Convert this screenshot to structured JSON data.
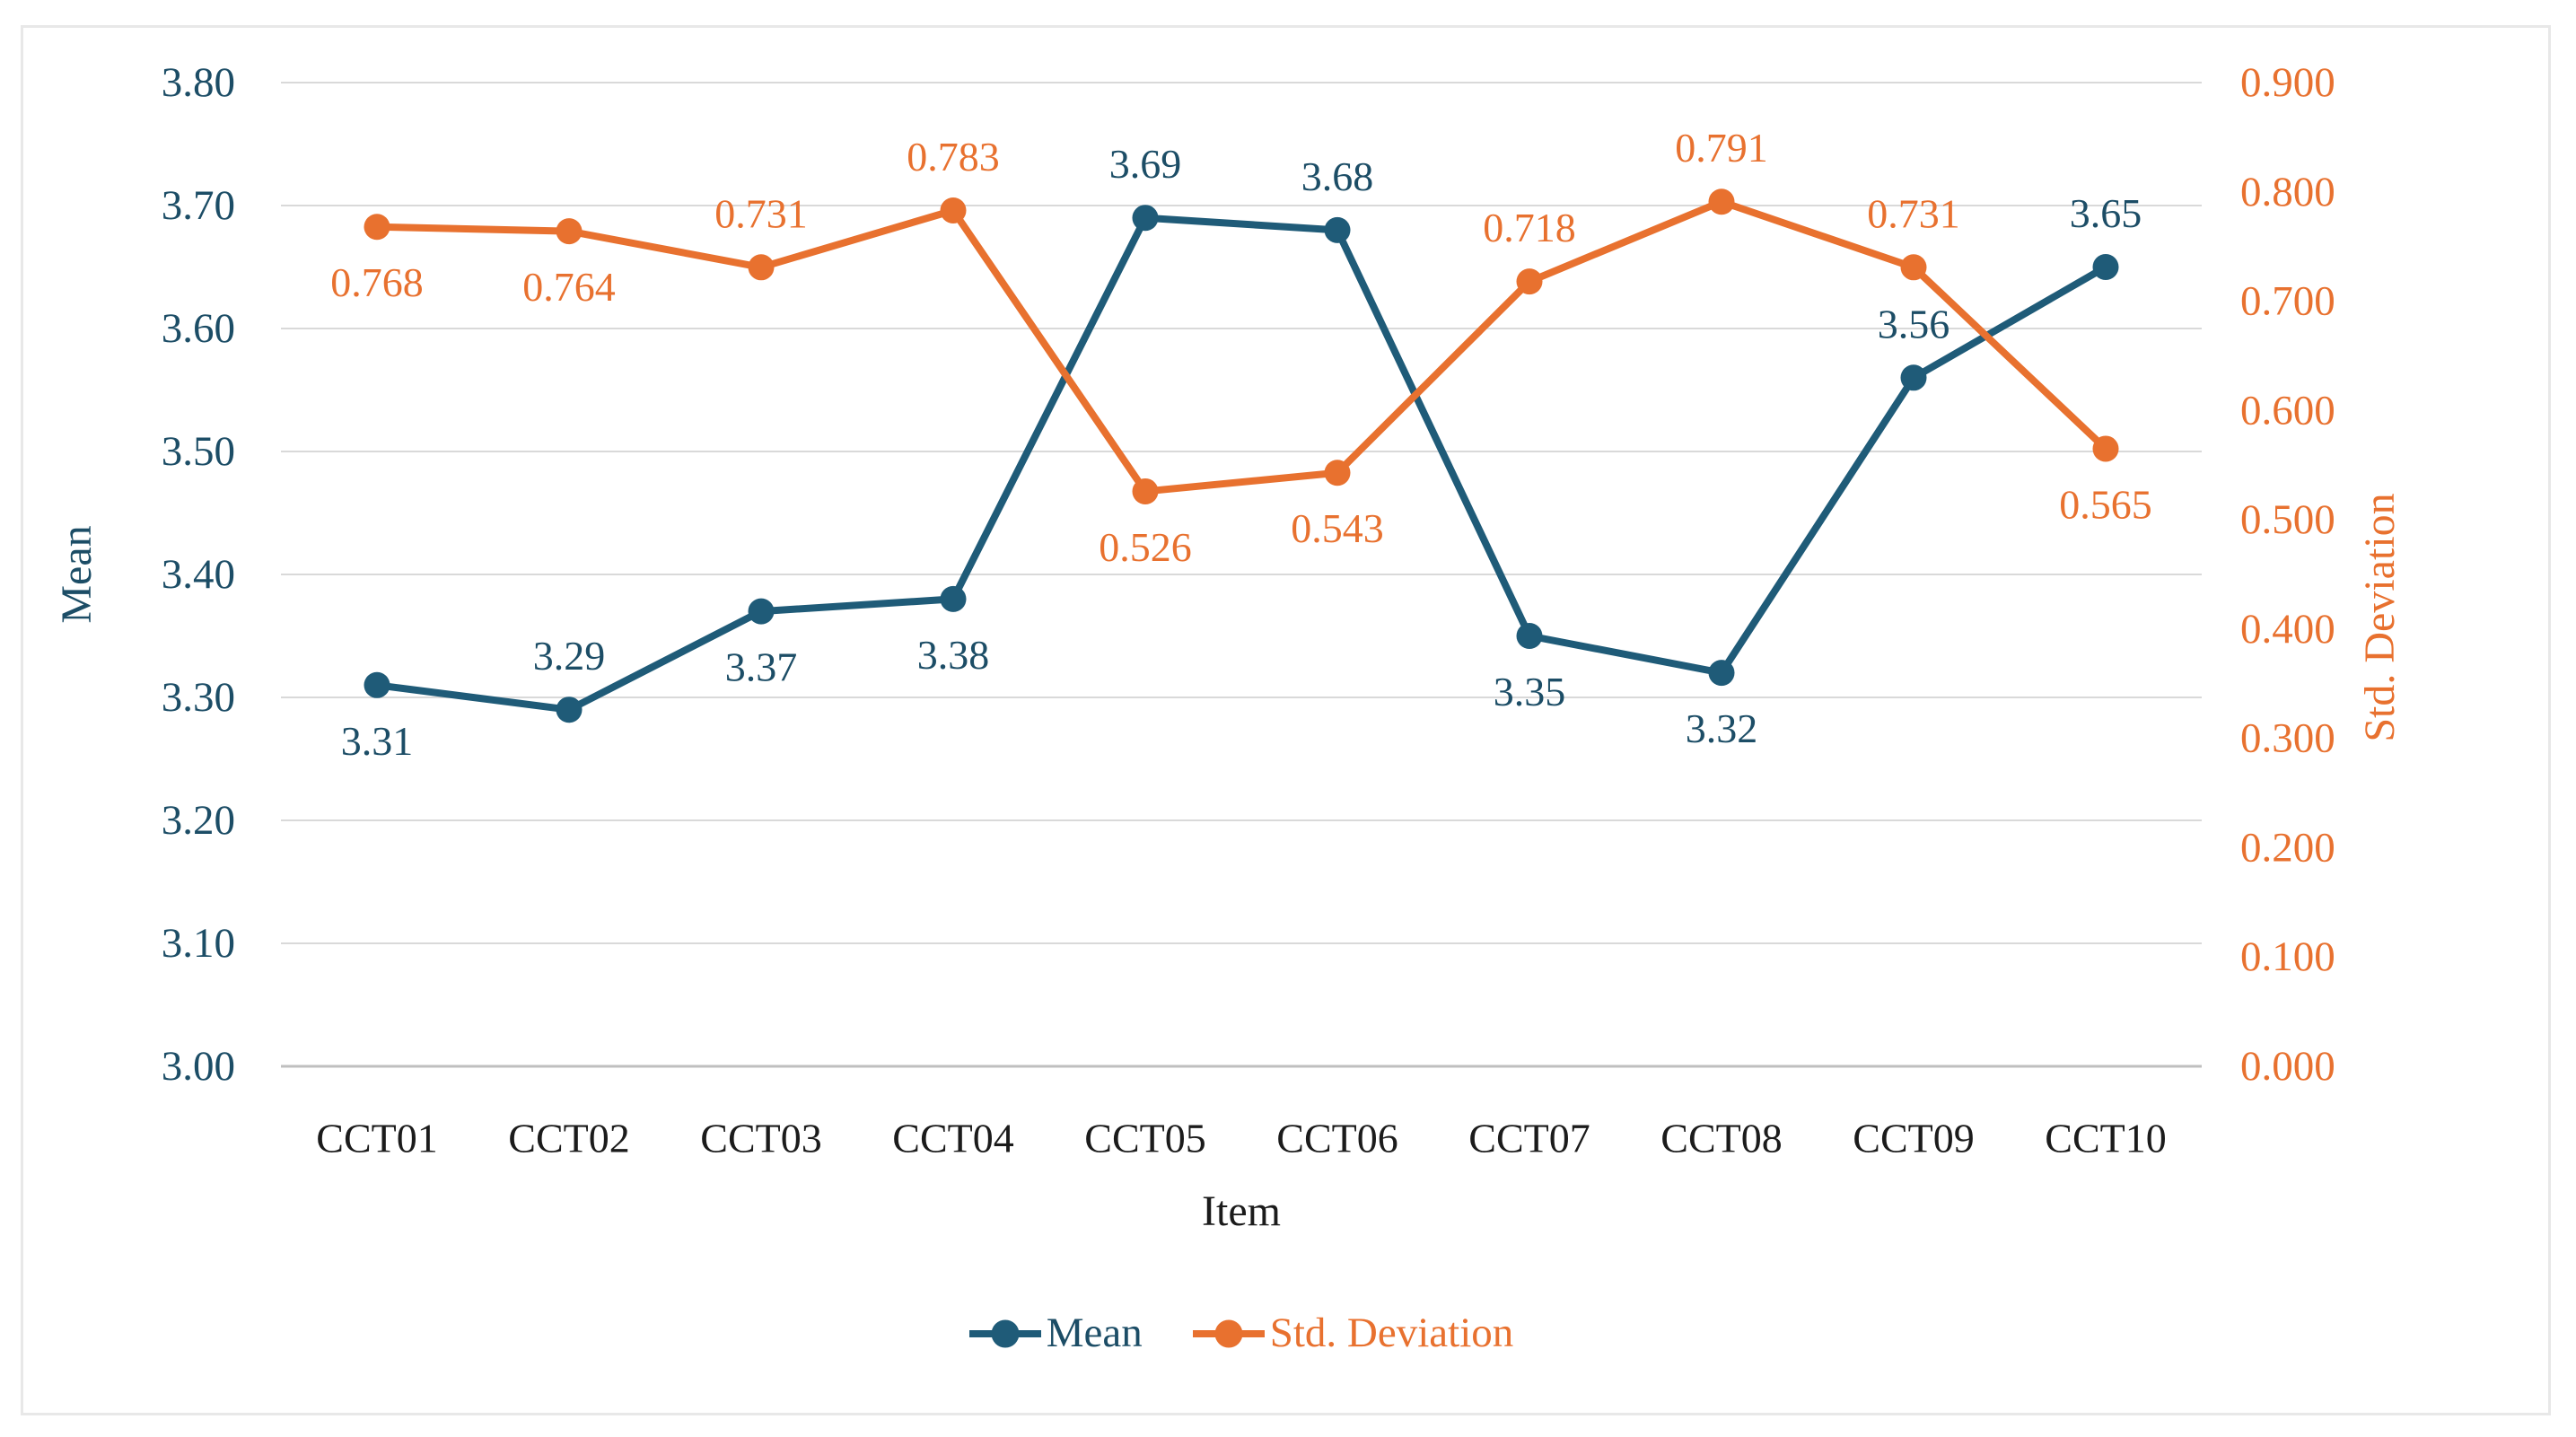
{
  "chart_data": {
    "type": "line",
    "categories": [
      "CCT01",
      "CCT02",
      "CCT03",
      "CCT04",
      "CCT05",
      "CCT06",
      "CCT07",
      "CCT08",
      "CCT09",
      "CCT10"
    ],
    "series": [
      {
        "name": "Mean",
        "axis": "left",
        "color": "#1F5B78",
        "text_color": "#1C4D66",
        "values": [
          3.31,
          3.29,
          3.37,
          3.38,
          3.69,
          3.68,
          3.35,
          3.32,
          3.56,
          3.65
        ],
        "labels": [
          "3.31",
          "3.29",
          "3.37",
          "3.38",
          "3.69",
          "3.68",
          "3.35",
          "3.32",
          "3.56",
          "3.65"
        ],
        "label_positions": [
          "below",
          "above",
          "below",
          "below",
          "above",
          "above",
          "below",
          "below",
          "above",
          "above"
        ]
      },
      {
        "name": "Std. Deviation",
        "axis": "right",
        "color": "#E8712F",
        "text_color": "#E8712F",
        "values": [
          0.768,
          0.764,
          0.731,
          0.783,
          0.526,
          0.543,
          0.718,
          0.791,
          0.731,
          0.565
        ],
        "labels": [
          "0.768",
          "0.764",
          "0.731",
          "0.783",
          "0.526",
          "0.543",
          "0.718",
          "0.791",
          "0.731",
          "0.565"
        ],
        "label_positions": [
          "below",
          "below",
          "above",
          "above",
          "below",
          "below",
          "above",
          "above",
          "above",
          "below"
        ]
      }
    ],
    "left_axis": {
      "title": "Mean",
      "min": 3.0,
      "max": 3.8,
      "ticks": [
        "3.80",
        "3.70",
        "3.60",
        "3.50",
        "3.40",
        "3.30",
        "3.20",
        "3.10",
        "3.00"
      ],
      "color": "#1C4D66"
    },
    "right_axis": {
      "title": "Std. Deviation",
      "min": 0.0,
      "max": 0.9,
      "ticks": [
        "0.900",
        "0.800",
        "0.700",
        "0.600",
        "0.500",
        "0.400",
        "0.300",
        "0.200",
        "0.100",
        "0.000"
      ],
      "color": "#E8712F"
    },
    "x_axis": {
      "title": "Item",
      "color": "#1B1B1B"
    },
    "grid": true,
    "legend_position": "bottom",
    "colors": {
      "grid": "#D9D9D9",
      "axis_line": "#BFBFBF",
      "panel_border": "#E8E8E8",
      "background": "#FFFFFF"
    }
  }
}
